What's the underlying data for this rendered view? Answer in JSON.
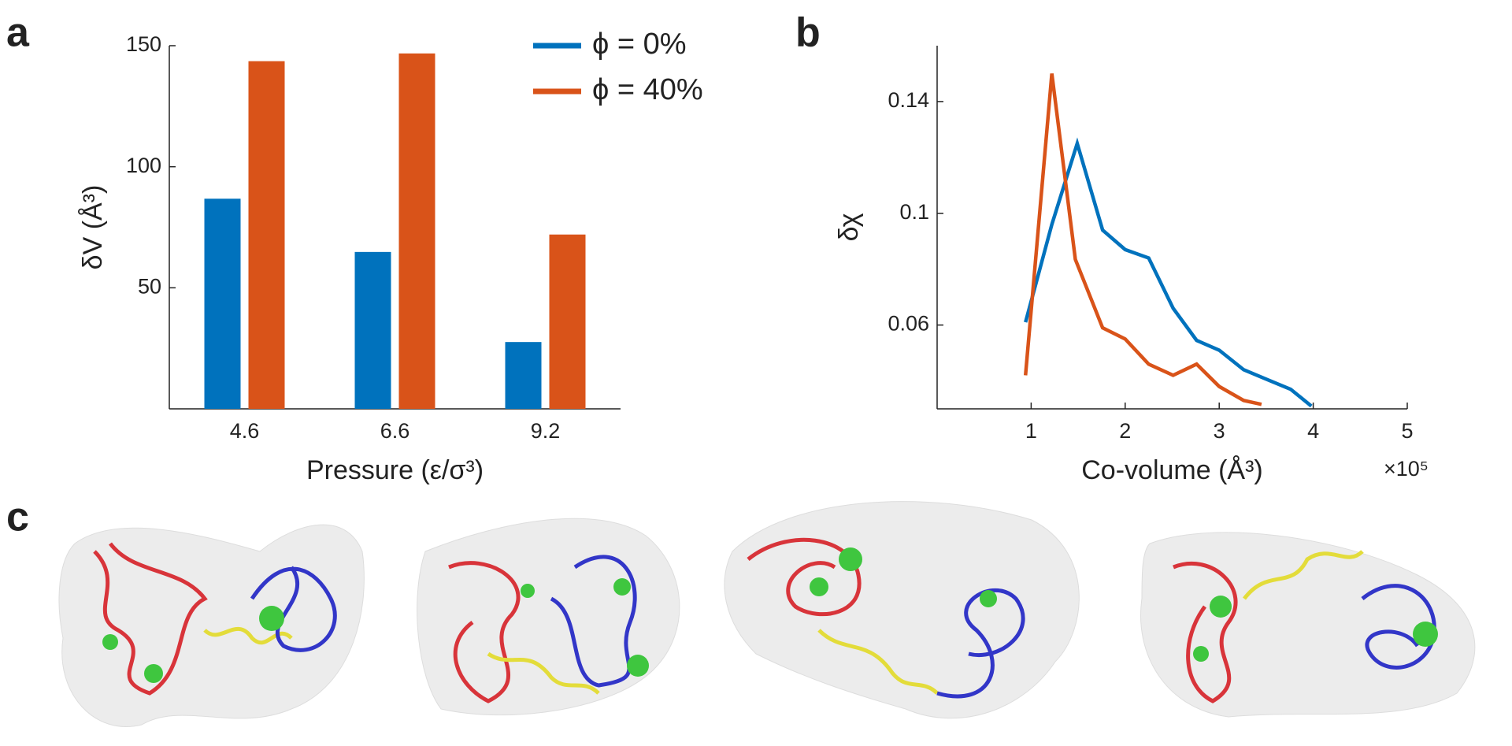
{
  "panels": [
    "a",
    "b",
    "c"
  ],
  "chart_data": [
    {
      "type": "bar",
      "x_label": "Pressure (ε/σ³)",
      "y_label": "δV (Å³)",
      "categories": [
        "4.6",
        "6.6",
        "9.2"
      ],
      "series": [
        {
          "name": "ϕ = 0%",
          "color": "#0072bd",
          "values": [
            86.8,
            64.8,
            27.6
          ]
        },
        {
          "name": "ϕ = 40%",
          "color": "#d95319",
          "values": [
            143.6,
            146.8,
            72
          ]
        }
      ],
      "ylim": [
        0,
        150
      ],
      "yticks": [
        50,
        100,
        150
      ],
      "legend": "outside-right"
    },
    {
      "type": "line",
      "x_label": "Co-volume (Å³)",
      "x_multiplier": "×10⁵",
      "y_label": "δχ",
      "series": [
        {
          "name": "ϕ = 0%",
          "color": "#0072bd",
          "x": [
            0.94,
            1.22,
            1.49,
            1.76,
            2.0,
            2.25,
            2.51,
            2.76,
            3.0,
            3.26,
            3.51,
            3.76,
            3.98
          ],
          "values": [
            0.061,
            0.096,
            0.125,
            0.094,
            0.087,
            0.084,
            0.066,
            0.0545,
            0.051,
            0.044,
            0.0405,
            0.037,
            0.031
          ]
        },
        {
          "name": "ϕ = 40%",
          "color": "#d95319",
          "x": [
            0.94,
            1.22,
            1.47,
            1.76,
            2.0,
            2.25,
            2.51,
            2.76,
            3.0,
            3.26,
            3.45
          ],
          "values": [
            0.042,
            0.15,
            0.0835,
            0.059,
            0.055,
            0.046,
            0.042,
            0.046,
            0.038,
            0.033,
            0.0316
          ]
        }
      ],
      "xlim": [
        0,
        5
      ],
      "xticks": [
        1,
        2,
        3,
        4,
        5
      ],
      "ylim": [
        0.03,
        0.16
      ],
      "yticks": [
        0.06,
        0.1,
        0.14
      ]
    }
  ]
}
